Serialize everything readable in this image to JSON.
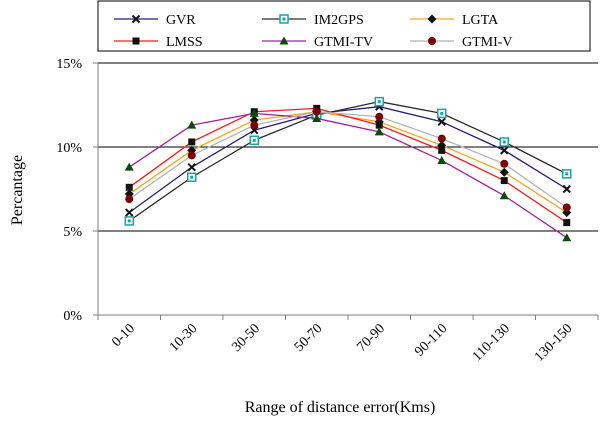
{
  "chart_data": {
    "type": "line",
    "xlabel": "Range of distance error(Kms)",
    "ylabel": "Percantage",
    "categories": [
      "0-10",
      "10-30",
      "30-50",
      "50-70",
      "70-90",
      "90-110",
      "110-130",
      "130-150"
    ],
    "ylim": [
      0,
      15
    ],
    "yticks": [
      "0%",
      "5%",
      "10%",
      "15%"
    ],
    "grid": true,
    "legend_position": "top",
    "series": [
      {
        "name": "GVR",
        "color": "#1f1f7a",
        "marker": "x",
        "values": [
          6.1,
          8.8,
          11.0,
          12.0,
          12.4,
          11.5,
          9.8,
          7.5
        ]
      },
      {
        "name": "IM2GPS",
        "color": "#2a2a2a",
        "marker": "square-hollow",
        "values": [
          5.6,
          8.2,
          10.4,
          11.9,
          12.7,
          12.0,
          10.3,
          8.4
        ]
      },
      {
        "name": "LGTA",
        "color": "#f5a623",
        "marker": "diamond",
        "values": [
          7.2,
          9.8,
          11.6,
          12.1,
          11.5,
          10.1,
          8.5,
          6.1
        ]
      },
      {
        "name": "LMSS",
        "color": "#ff1a1a",
        "marker": "square",
        "values": [
          7.6,
          10.3,
          12.1,
          12.3,
          11.3,
          9.8,
          8.0,
          5.5
        ]
      },
      {
        "name": "GTMI-TV",
        "color": "#a020a0",
        "marker": "triangle",
        "values": [
          8.8,
          11.3,
          12.0,
          11.7,
          10.9,
          9.2,
          7.1,
          4.6
        ]
      },
      {
        "name": "GTMI-V",
        "color": "#b4b4b4",
        "marker": "circle",
        "values": [
          6.9,
          9.5,
          11.3,
          12.1,
          11.8,
          10.5,
          9.0,
          6.4
        ]
      }
    ],
    "marker_fill": "#111111",
    "marker_fill_GTMI_TV": "#0a4a0a",
    "marker_fill_GTMI_V": "#7a0000",
    "gridline_color": "#000000",
    "axis_color": "#808080"
  }
}
